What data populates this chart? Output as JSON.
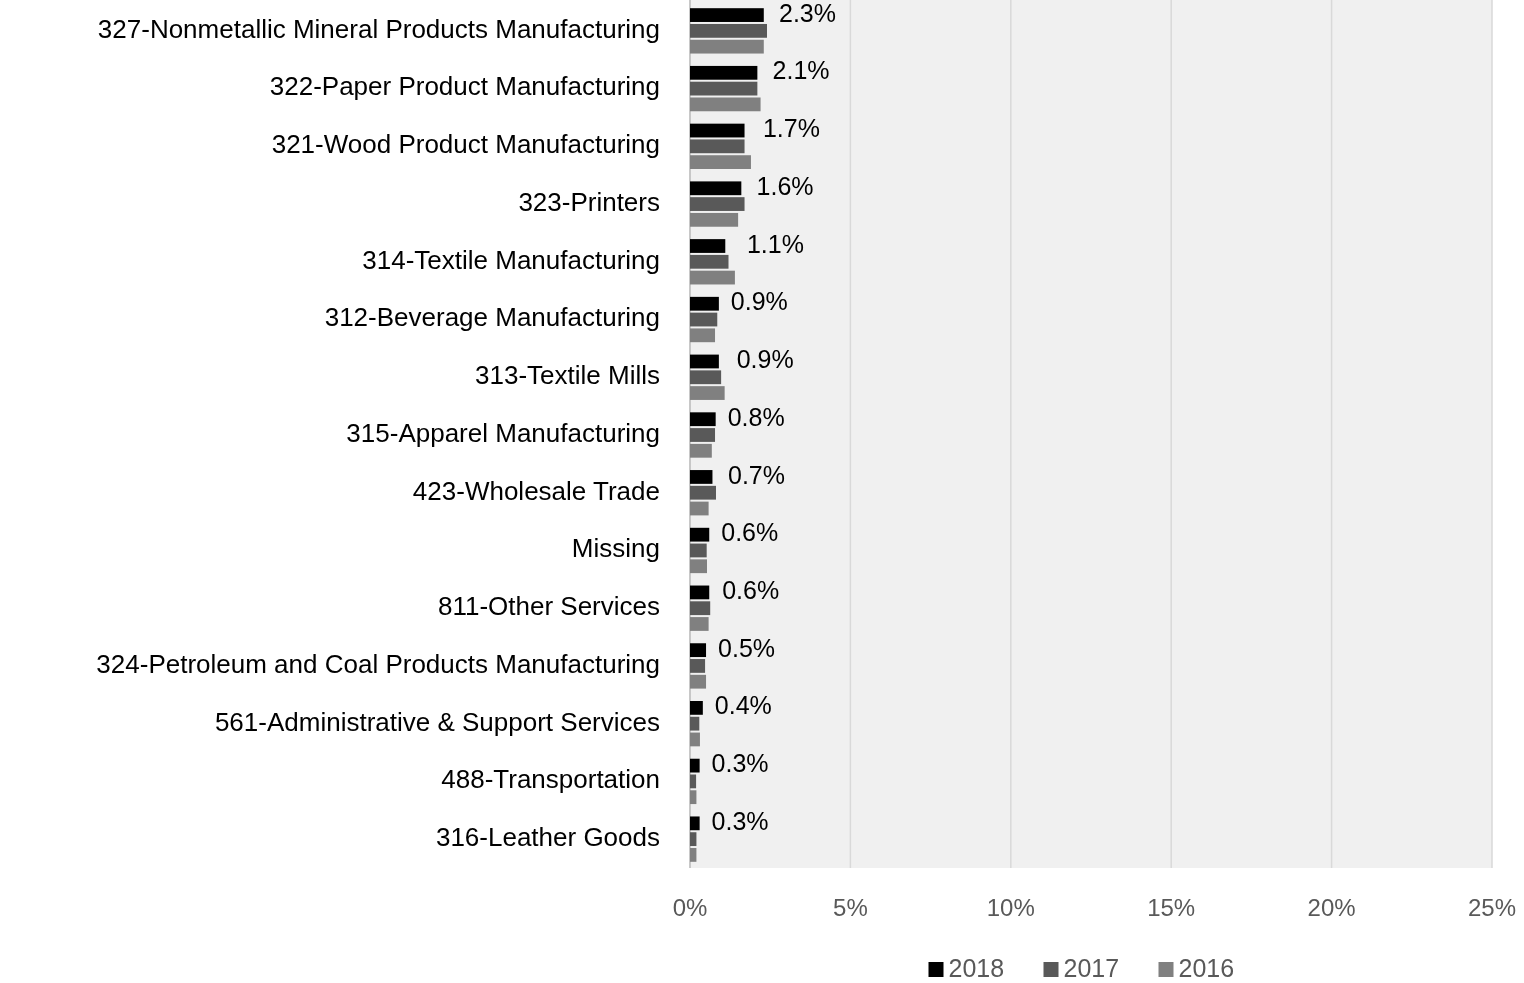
{
  "chart_data": {
    "type": "bar",
    "orientation": "horizontal",
    "categories": [
      "327-Nonmetallic Mineral Products Manufacturing",
      "322-Paper Product Manufacturing",
      "321-Wood Product Manufacturing",
      "323-Printers",
      "314-Textile Manufacturing",
      "312-Beverage Manufacturing",
      "313-Textile Mills",
      "315-Apparel Manufacturing",
      "423-Wholesale Trade",
      "Missing",
      "811-Other Services",
      "324-Petroleum and Coal Products Manufacturing",
      "561-Administrative & Support Services",
      "488-Transportation",
      "316-Leather Goods"
    ],
    "series": [
      {
        "name": "2018",
        "color": "#000000",
        "values": [
          2.3,
          2.1,
          1.7,
          1.6,
          1.1,
          0.9,
          0.9,
          0.8,
          0.7,
          0.6,
          0.6,
          0.5,
          0.4,
          0.3,
          0.3
        ],
        "value_labels": [
          "2.3%",
          "2.1%",
          "1.7%",
          "1.6%",
          "1.1%",
          "0.9%",
          "0.9%",
          "0.8%",
          "0.7%",
          "0.6%",
          "0.6%",
          "0.5%",
          "0.4%",
          "0.3%",
          "0.3%"
        ]
      },
      {
        "name": "2017",
        "color": "#595959",
        "values": [
          2.4,
          2.1,
          1.7,
          1.7,
          1.2,
          0.85,
          0.97,
          0.78,
          0.81,
          0.52,
          0.63,
          0.47,
          0.29,
          0.19,
          0.2
        ]
      },
      {
        "name": "2016",
        "color": "#808080",
        "values": [
          2.3,
          2.2,
          1.9,
          1.5,
          1.4,
          0.78,
          1.08,
          0.68,
          0.58,
          0.53,
          0.58,
          0.5,
          0.31,
          0.2,
          0.2
        ]
      }
    ],
    "xlim": [
      0,
      25
    ],
    "xticks": [
      {
        "value": 0,
        "label": "0%"
      },
      {
        "value": 5,
        "label": "5%"
      },
      {
        "value": 10,
        "label": "10%"
      },
      {
        "value": 15,
        "label": "15%"
      },
      {
        "value": 20,
        "label": "20%"
      },
      {
        "value": 25,
        "label": "25%"
      }
    ],
    "grid": "x",
    "legend": "bottom"
  }
}
